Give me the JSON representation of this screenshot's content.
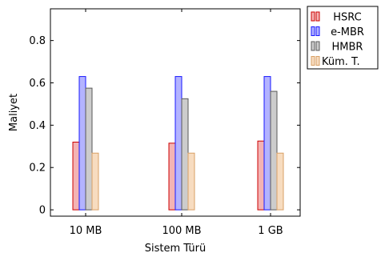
{
  "chart_data": {
    "type": "bar",
    "categories": [
      "10 MB",
      "100 MB",
      "1 GB"
    ],
    "series": [
      {
        "name": "HSRC",
        "values": [
          0.32,
          0.315,
          0.325
        ],
        "stroke": "#cc0000",
        "fill": "#f4b3b3"
      },
      {
        "name": "e-MBR",
        "values": [
          0.63,
          0.63,
          0.63
        ],
        "stroke": "#1a1aff",
        "fill": "#b3b3ff"
      },
      {
        "name": "HMBR",
        "values": [
          0.575,
          0.525,
          0.56
        ],
        "stroke": "#595959",
        "fill": "#cccccc"
      },
      {
        "name": "Küm. T.",
        "values": [
          0.268,
          0.268,
          0.268
        ],
        "stroke": "#d9a066",
        "fill": "#f7dcc0"
      }
    ],
    "title": "",
    "xlabel": "Sistem Türü",
    "ylabel": "Maliyet",
    "ylim": [
      -0.03,
      0.95
    ],
    "yticks": [
      0,
      0.2,
      0.4,
      0.6,
      0.8
    ],
    "ytick_labels": [
      "0",
      "0.2",
      "0.4",
      "0.6",
      "0.8"
    ],
    "legend": "outside-right-top",
    "grid": false
  }
}
